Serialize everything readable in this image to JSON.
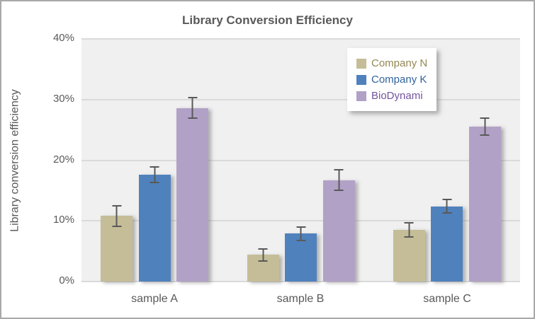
{
  "chart_data": {
    "type": "bar",
    "title": "Library Conversion Efficiency",
    "ylabel": "Library conversion efficiency",
    "xlabel": "",
    "ylim": [
      0,
      40
    ],
    "grid": true,
    "value_format": "percent",
    "legend_position": "top-right",
    "plot_bg": "#f0f0f0",
    "gridline_color": "#dadada",
    "error_bar_color": "#595959",
    "axis_text_color": "#595959",
    "yticks": [
      {
        "value": 0,
        "label": "0%"
      },
      {
        "value": 10,
        "label": "10%"
      },
      {
        "value": 20,
        "label": "20%"
      },
      {
        "value": 30,
        "label": "30%"
      },
      {
        "value": 40,
        "label": "40%"
      }
    ],
    "categories": [
      "sample A",
      "sample B",
      "sample C"
    ],
    "series": [
      {
        "name": "Company N",
        "color": "#C4BD97",
        "label_color": "#938953",
        "values": [
          10.8,
          4.4,
          8.5
        ],
        "errors": [
          1.8,
          1.1,
          1.3
        ]
      },
      {
        "name": "Company K",
        "color": "#4F81BD",
        "label_color": "#31639C",
        "values": [
          17.6,
          7.9,
          12.4
        ],
        "errors": [
          1.4,
          1.2,
          1.2
        ]
      },
      {
        "name": "BioDynami",
        "color": "#B2A1C7",
        "label_color": "#74549E",
        "values": [
          28.6,
          16.7,
          25.5
        ],
        "errors": [
          1.8,
          1.8,
          1.5
        ]
      }
    ]
  }
}
